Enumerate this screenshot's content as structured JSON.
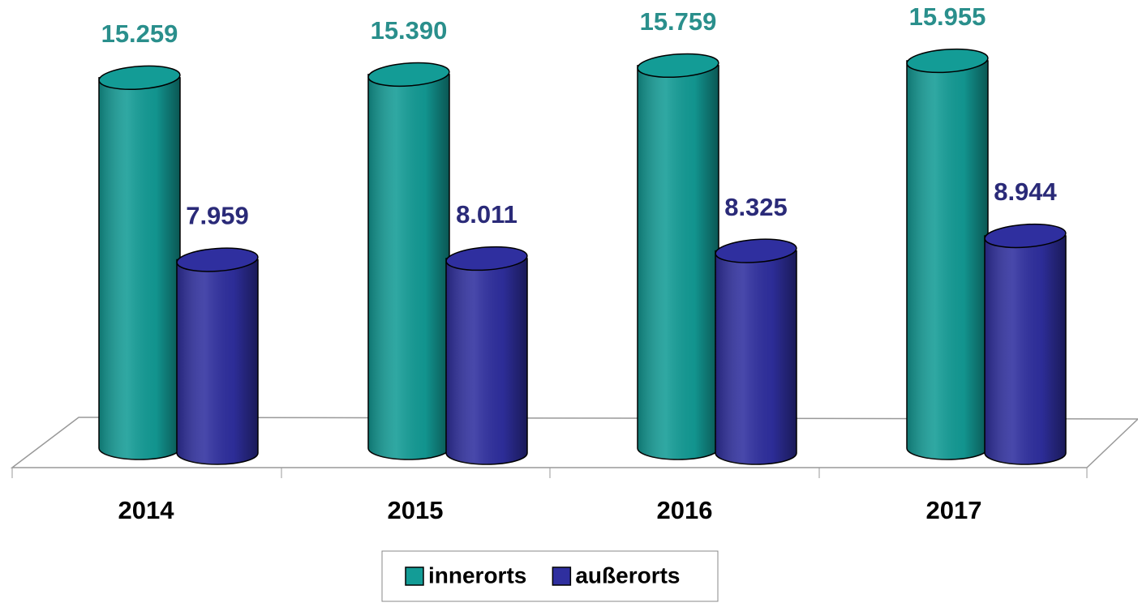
{
  "chart_data": {
    "type": "bar",
    "categories": [
      "2014",
      "2015",
      "2016",
      "2017"
    ],
    "series": [
      {
        "name": "innerorts",
        "color": "#139c96",
        "label_color": "#2a8f8c",
        "values": [
          15259,
          15390,
          15759,
          15955
        ],
        "value_labels": [
          "15.259",
          "15.390",
          "15.759",
          "15.955"
        ]
      },
      {
        "name": "außerorts",
        "color": "#2f2f9f",
        "label_color": "#2a2a78",
        "values": [
          7959,
          8011,
          8325,
          8944
        ],
        "value_labels": [
          "7.959",
          "8.011",
          "8.325",
          "8.944"
        ]
      }
    ],
    "legend": "bottom"
  }
}
